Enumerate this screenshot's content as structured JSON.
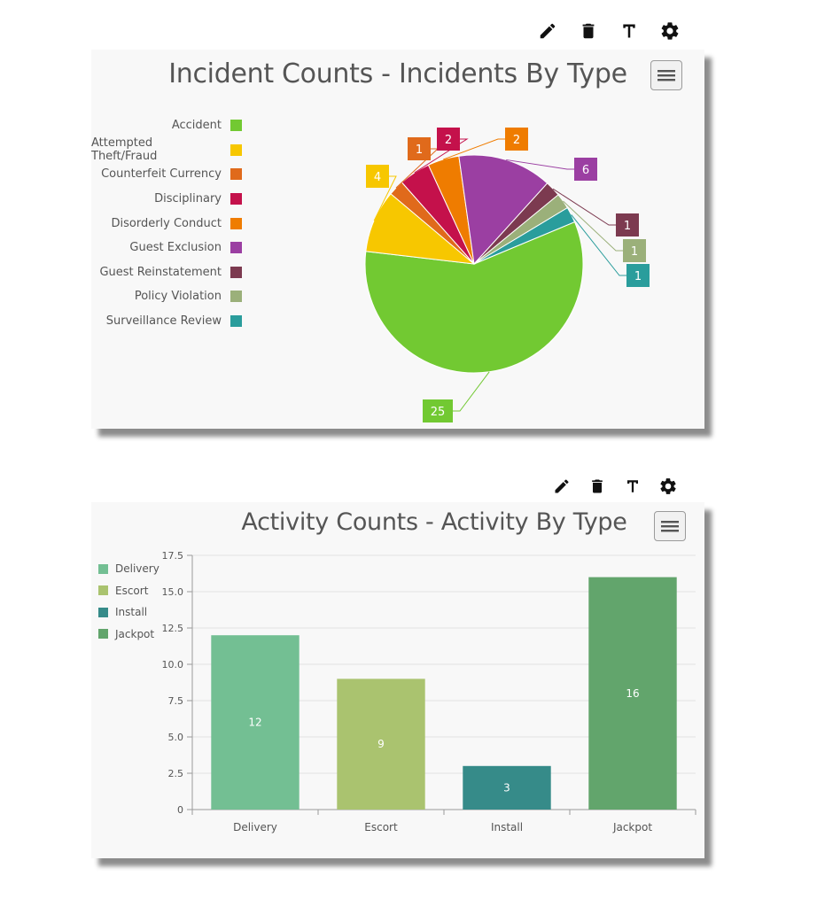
{
  "toolbar_icons": [
    "pencil-icon",
    "trash-icon",
    "text-icon",
    "gear-icon"
  ],
  "menu_icon": "hamburger-menu-icon",
  "incident_chart": {
    "title": "Incident Counts - Incidents By Type"
  },
  "activity_chart": {
    "title": "Activity Counts - Activity By Type"
  },
  "chart_data": [
    {
      "type": "pie",
      "title": "Incident Counts - Incidents By Type",
      "legend": "left",
      "categories": [
        "Accident",
        "Attempted Theft/Fraud",
        "Counterfeit Currency",
        "Disciplinary",
        "Disorderly Conduct",
        "Guest Exclusion",
        "Guest Reinstatement",
        "Policy Violation",
        "Surveillance Review"
      ],
      "values": [
        25,
        4,
        1,
        2,
        2,
        6,
        1,
        1,
        1
      ],
      "colors": [
        "#72c932",
        "#f7c700",
        "#e06a1b",
        "#c4114b",
        "#ef7c00",
        "#9b3fa2",
        "#7c3a50",
        "#9bb07a",
        "#2a9d9c"
      ]
    },
    {
      "type": "bar",
      "title": "Activity Counts - Activity By Type",
      "legend": "left",
      "categories": [
        "Delivery",
        "Escort",
        "Install",
        "Jackpot"
      ],
      "values": [
        12,
        9,
        3,
        16
      ],
      "colors": [
        "#73bf93",
        "#aac36f",
        "#368b89",
        "#62a56c"
      ],
      "yticks": [
        "0",
        "2.5",
        "5.0",
        "7.5",
        "10.0",
        "12.5",
        "15.0",
        "17.5"
      ],
      "ylim": [
        0,
        17.5
      ],
      "grid": true
    }
  ]
}
